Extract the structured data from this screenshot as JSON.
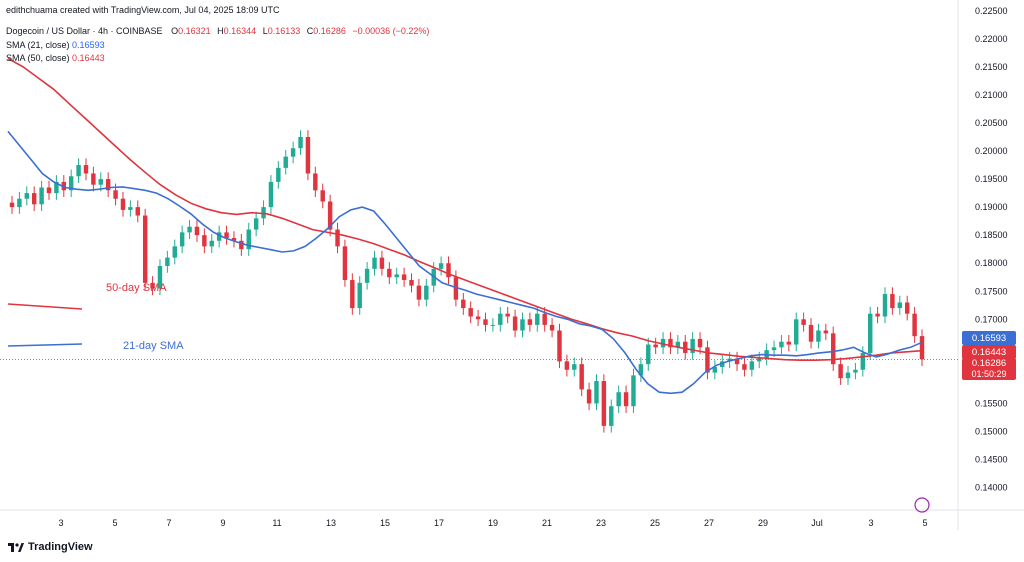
{
  "header": {
    "attribution": "edithchuama created with TradingView.com, Jul 04, 2025 18:09 UTC",
    "symbol": "Dogecoin / US Dollar · 4h · COINBASE",
    "o_label": "O",
    "o_value": "0.16321",
    "h_label": "H",
    "h_value": "0.16344",
    "l_label": "L",
    "l_value": "0.16133",
    "c_label": "C",
    "c_value": "0.16286",
    "change": "−0.00036 (−0.22%)"
  },
  "indicators": [
    {
      "label": "SMA (21, close)",
      "value": "0.16593",
      "color": "#3b6fd4"
    },
    {
      "label": "SMA (50, close)",
      "value": "0.16443",
      "color": "#e0343e"
    }
  ],
  "annotations": {
    "sma50": "50-day SMA",
    "sma21": "21-day SMA"
  },
  "price_tags": {
    "sma21": "0.16593",
    "sma50": "0.16443",
    "last": "0.16286",
    "timer": "01:50:29"
  },
  "brand": "TradingView",
  "chart_data": {
    "type": "candlestick",
    "title": "Dogecoin / US Dollar · 4h · COINBASE",
    "ylim": [
      0.136,
      0.2255
    ],
    "y_ticks": [
      "0.22500",
      "0.22000",
      "0.21500",
      "0.21000",
      "0.20500",
      "0.20000",
      "0.19500",
      "0.19000",
      "0.18500",
      "0.18000",
      "0.17500",
      "0.17000",
      "0.16500",
      "0.16000",
      "0.15500",
      "0.15000",
      "0.14500",
      "0.14000"
    ],
    "x_ticks": [
      "3",
      "5",
      "7",
      "9",
      "11",
      "13",
      "15",
      "17",
      "19",
      "21",
      "23",
      "25",
      "27",
      "29",
      "Jul",
      "3",
      "5"
    ],
    "colors": {
      "up": "#22ab94",
      "down": "#e0343e",
      "sma21": "#3b6fd4",
      "sma50": "#e0343e"
    },
    "ohlc_series": {
      "note_unit": "USD",
      "closes": [
        0.19,
        0.1915,
        0.1925,
        0.1905,
        0.1935,
        0.1925,
        0.1945,
        0.193,
        0.1955,
        0.1975,
        0.196,
        0.194,
        0.195,
        0.193,
        0.1915,
        0.1895,
        0.19,
        0.1885,
        0.1765,
        0.1755,
        0.1795,
        0.181,
        0.183,
        0.1855,
        0.1865,
        0.185,
        0.183,
        0.184,
        0.1855,
        0.1845,
        0.184,
        0.1825,
        0.186,
        0.188,
        0.19,
        0.1945,
        0.197,
        0.199,
        0.2005,
        0.2025,
        0.196,
        0.193,
        0.191,
        0.186,
        0.183,
        0.177,
        0.172,
        0.1765,
        0.179,
        0.181,
        0.179,
        0.1775,
        0.178,
        0.177,
        0.176,
        0.1735,
        0.176,
        0.179,
        0.18,
        0.1775,
        0.1735,
        0.172,
        0.1705,
        0.17,
        0.169,
        0.169,
        0.171,
        0.1705,
        0.168,
        0.17,
        0.169,
        0.171,
        0.169,
        0.168,
        0.1625,
        0.161,
        0.162,
        0.1575,
        0.155,
        0.159,
        0.151,
        0.1545,
        0.157,
        0.1545,
        0.16,
        0.162,
        0.1655,
        0.165,
        0.1665,
        0.165,
        0.166,
        0.164,
        0.1665,
        0.165,
        0.1605,
        0.1615,
        0.1625,
        0.163,
        0.162,
        0.161,
        0.1625,
        0.163,
        0.1645,
        0.165,
        0.166,
        0.1655,
        0.17,
        0.169,
        0.166,
        0.168,
        0.1675,
        0.162,
        0.1595,
        0.1605,
        0.161,
        0.164,
        0.171,
        0.1705,
        0.1745,
        0.172,
        0.173,
        0.171,
        0.167,
        0.16286
      ],
      "sma21_values": [
        0.2035,
        0.201,
        0.1985,
        0.196,
        0.1945,
        0.1935,
        0.1932,
        0.193,
        0.1932,
        0.1935,
        0.1936,
        0.1933,
        0.193,
        0.1925,
        0.1915,
        0.1902,
        0.1888,
        0.187,
        0.1855,
        0.1845,
        0.1838,
        0.1832,
        0.1828,
        0.1824,
        0.182,
        0.1822,
        0.183,
        0.1845,
        0.1862,
        0.1883,
        0.1895,
        0.19,
        0.1893,
        0.187,
        0.1845,
        0.182,
        0.1795,
        0.178,
        0.1765,
        0.1758,
        0.1752,
        0.1745,
        0.174,
        0.1735,
        0.173,
        0.1725,
        0.172,
        0.1712,
        0.1705,
        0.17,
        0.1692,
        0.1688,
        0.1682,
        0.1665,
        0.164,
        0.161,
        0.1585,
        0.157,
        0.1568,
        0.157,
        0.1585,
        0.1605,
        0.1618,
        0.1625,
        0.163,
        0.1635,
        0.1637,
        0.1636,
        0.1636,
        0.1635,
        0.1637,
        0.164,
        0.1642,
        0.1645,
        0.165,
        0.164,
        0.1633,
        0.1638,
        0.1645,
        0.165,
        0.1659
      ],
      "sma50_values": [
        0.2165,
        0.215,
        0.213,
        0.211,
        0.2085,
        0.206,
        0.2035,
        0.201,
        0.1985,
        0.1962,
        0.194,
        0.1922,
        0.1907,
        0.1897,
        0.189,
        0.1887,
        0.189,
        0.1888,
        0.188,
        0.187,
        0.186,
        0.1855,
        0.185,
        0.1843,
        0.1835,
        0.1825,
        0.1815,
        0.1803,
        0.1792,
        0.178,
        0.177,
        0.176,
        0.175,
        0.174,
        0.173,
        0.172,
        0.171,
        0.17,
        0.1692,
        0.1683,
        0.1676,
        0.167,
        0.1662,
        0.1656,
        0.165,
        0.1645,
        0.164,
        0.1637,
        0.1634,
        0.1632,
        0.163,
        0.1628,
        0.1627,
        0.1627,
        0.1628,
        0.163,
        0.1633,
        0.1636,
        0.164,
        0.1642,
        0.1644
      ]
    },
    "legend_lines": [
      {
        "name": "SMA (21, close)",
        "color": "#3b6fd4"
      },
      {
        "name": "SMA (50, close)",
        "color": "#e0343e"
      }
    ]
  }
}
